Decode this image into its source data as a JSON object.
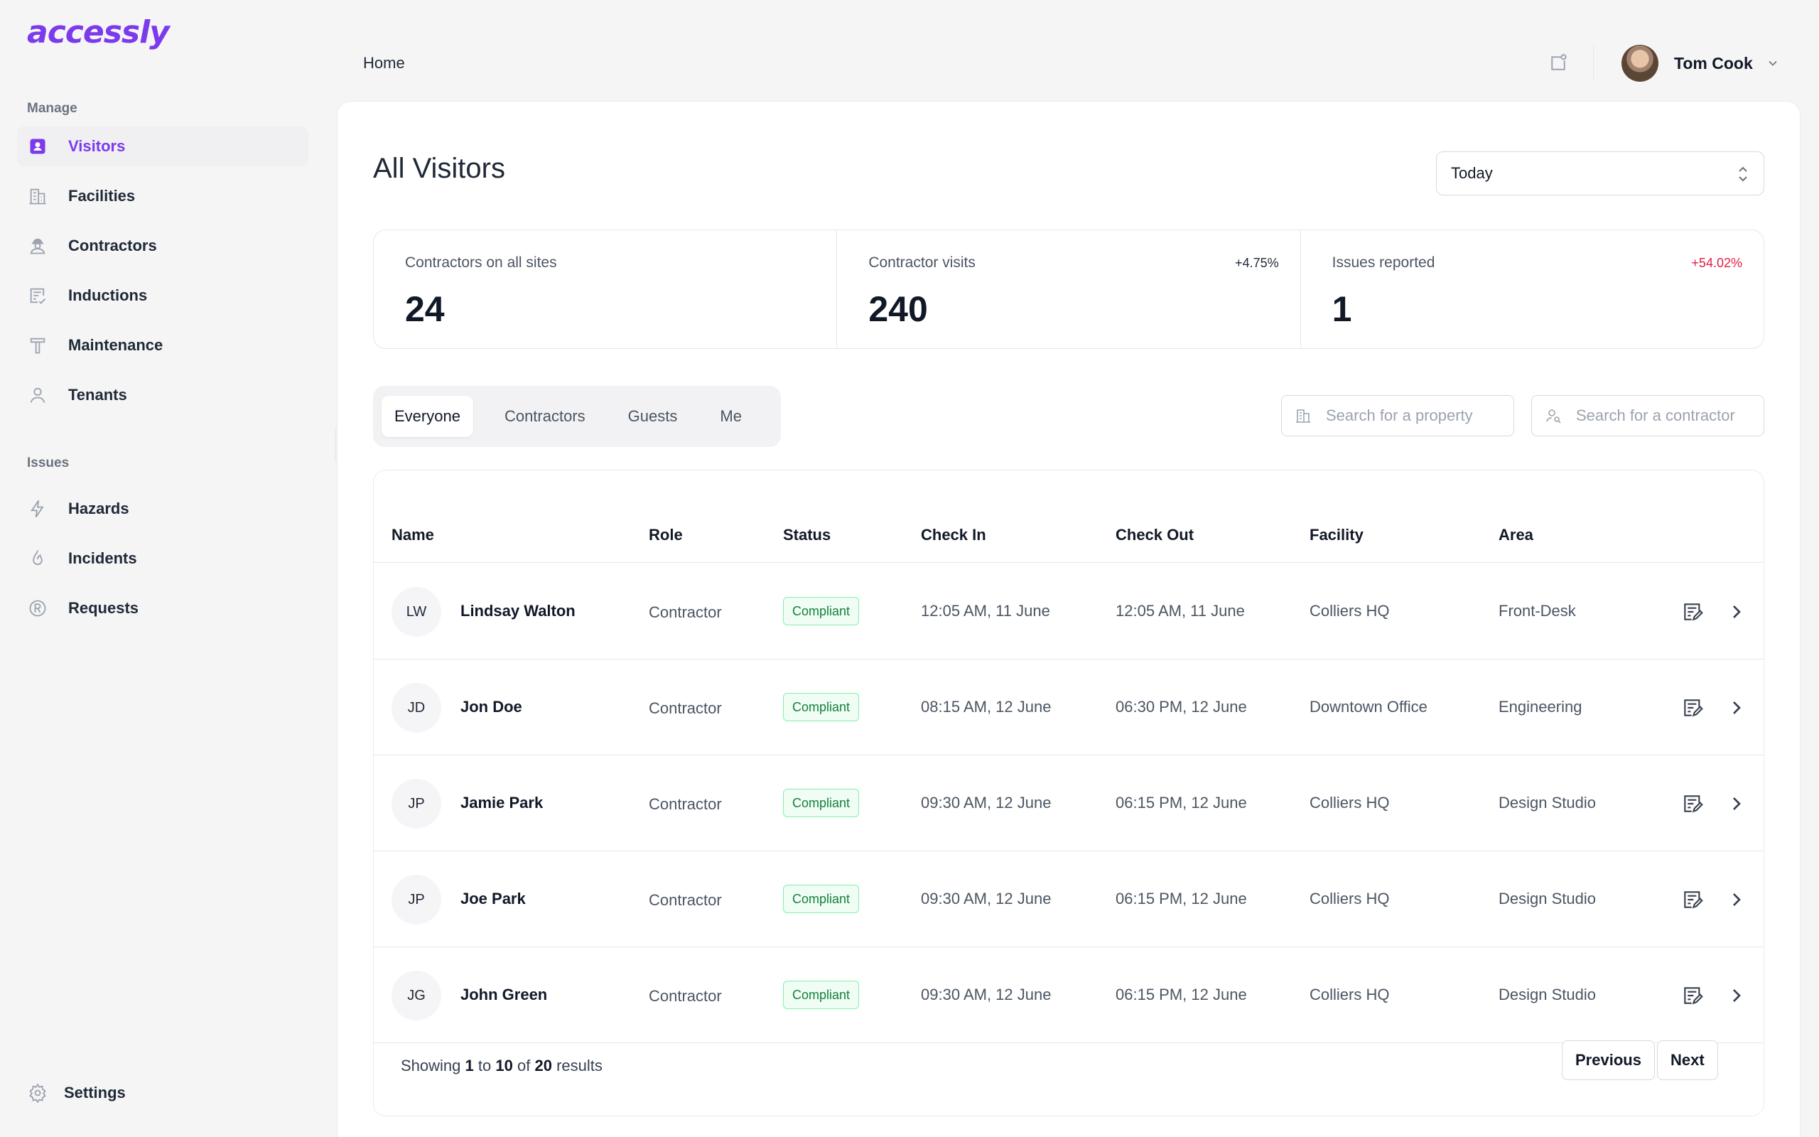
{
  "app": {
    "logo": "accessly",
    "watermark": "accessly"
  },
  "sidebar": {
    "manage_label": "Manage",
    "manage_items": [
      {
        "label": "Visitors",
        "icon": "id-card-icon",
        "active": true
      },
      {
        "label": "Facilities",
        "icon": "building-icon"
      },
      {
        "label": "Contractors",
        "icon": "worker-icon"
      },
      {
        "label": "Inductions",
        "icon": "checklist-icon"
      },
      {
        "label": "Maintenance",
        "icon": "hammer-icon"
      },
      {
        "label": "Tenants",
        "icon": "user-icon"
      }
    ],
    "issues_label": "Issues",
    "issues_items": [
      {
        "label": "Hazards",
        "icon": "bolt-icon"
      },
      {
        "label": "Incidents",
        "icon": "flame-icon"
      },
      {
        "label": "Requests",
        "icon": "registered-icon"
      }
    ],
    "settings_label": "Settings"
  },
  "header": {
    "breadcrumb": "Home",
    "user_name": "Tom Cook"
  },
  "main": {
    "title": "All Visitors",
    "period": "Today",
    "stats": [
      {
        "label": "Contractors on all sites",
        "value": "24",
        "change": ""
      },
      {
        "label": "Contractor visits",
        "value": "240",
        "change": "+4.75%",
        "change_color": "#1f2937"
      },
      {
        "label": "Issues reported",
        "value": "1",
        "change": "+54.02%",
        "change_color": "#e11d48"
      }
    ],
    "tabs": [
      "Everyone",
      "Contractors",
      "Guests",
      "Me"
    ],
    "active_tab": "Everyone",
    "search_property_placeholder": "Search for a property",
    "search_contractor_placeholder": "Search for a contractor"
  },
  "table": {
    "columns": [
      "Name",
      "Role",
      "Status",
      "Check In",
      "Check Out",
      "Facility",
      "Area"
    ],
    "rows": [
      {
        "initials": "LW",
        "name": "Lindsay Walton",
        "role": "Contractor",
        "status": "Compliant",
        "check_in": "12:05 AM, 11 June",
        "check_out": "12:05 AM, 11 June",
        "facility": "Colliers HQ",
        "area": "Front-Desk"
      },
      {
        "initials": "JD",
        "name": "Jon Doe",
        "role": "Contractor",
        "status": "Compliant",
        "check_in": "08:15 AM, 12 June",
        "check_out": "06:30 PM, 12 June",
        "facility": "Downtown Office",
        "area": "Engineering"
      },
      {
        "initials": "JP",
        "name": "Jamie Park",
        "role": "Contractor",
        "status": "Compliant",
        "check_in": "09:30 AM, 12 June",
        "check_out": "06:15 PM, 12 June",
        "facility": "Colliers HQ",
        "area": "Design Studio"
      },
      {
        "initials": "JP",
        "name": "Joe Park",
        "role": "Contractor",
        "status": "Compliant",
        "check_in": "09:30 AM, 12 June",
        "check_out": "06:15 PM, 12 June",
        "facility": "Colliers HQ",
        "area": "Design Studio"
      },
      {
        "initials": "JG",
        "name": "John Green",
        "role": "Contractor",
        "status": "Compliant",
        "check_in": "09:30 AM, 12 June",
        "check_out": "06:15 PM, 12 June",
        "facility": "Colliers HQ",
        "area": "Design Studio"
      }
    ],
    "footer": {
      "prefix": "Showing",
      "from": "1",
      "to_word": "to",
      "to": "10",
      "of_word": "of",
      "total": "20",
      "suffix": "results"
    },
    "previous_label": "Previous",
    "next_label": "Next"
  },
  "colors": {
    "accent": "#7c3aed",
    "compliant": "#15803d",
    "negative": "#e11d48"
  }
}
